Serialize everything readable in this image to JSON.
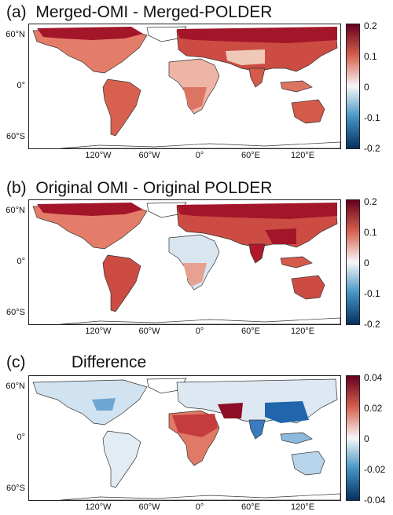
{
  "panels": [
    {
      "title": "(a)  Merged-OMI - Merged-POLDER",
      "cbar_ticks": [
        "0.2",
        "0.1",
        "0",
        "-0.1",
        "-0.2"
      ]
    },
    {
      "title": "(b)  Original OMI - Original POLDER",
      "cbar_ticks": [
        "0.2",
        "0.1",
        "0",
        "-0.1",
        "-0.2"
      ]
    },
    {
      "title": "(c)          Difference",
      "cbar_ticks": [
        "0.04",
        "0.02",
        "0",
        "-0.02",
        "-0.04"
      ]
    }
  ],
  "lat_labels": [
    "60°N",
    "0°",
    "60°S"
  ],
  "lon_labels": [
    "120°W",
    "60°W",
    "0°",
    "60°E",
    "120°E"
  ],
  "colors": {
    "positive": "#b2182b",
    "neutral": "#f7f7f7",
    "negative": "#2166ac",
    "coast": "#333333"
  }
}
